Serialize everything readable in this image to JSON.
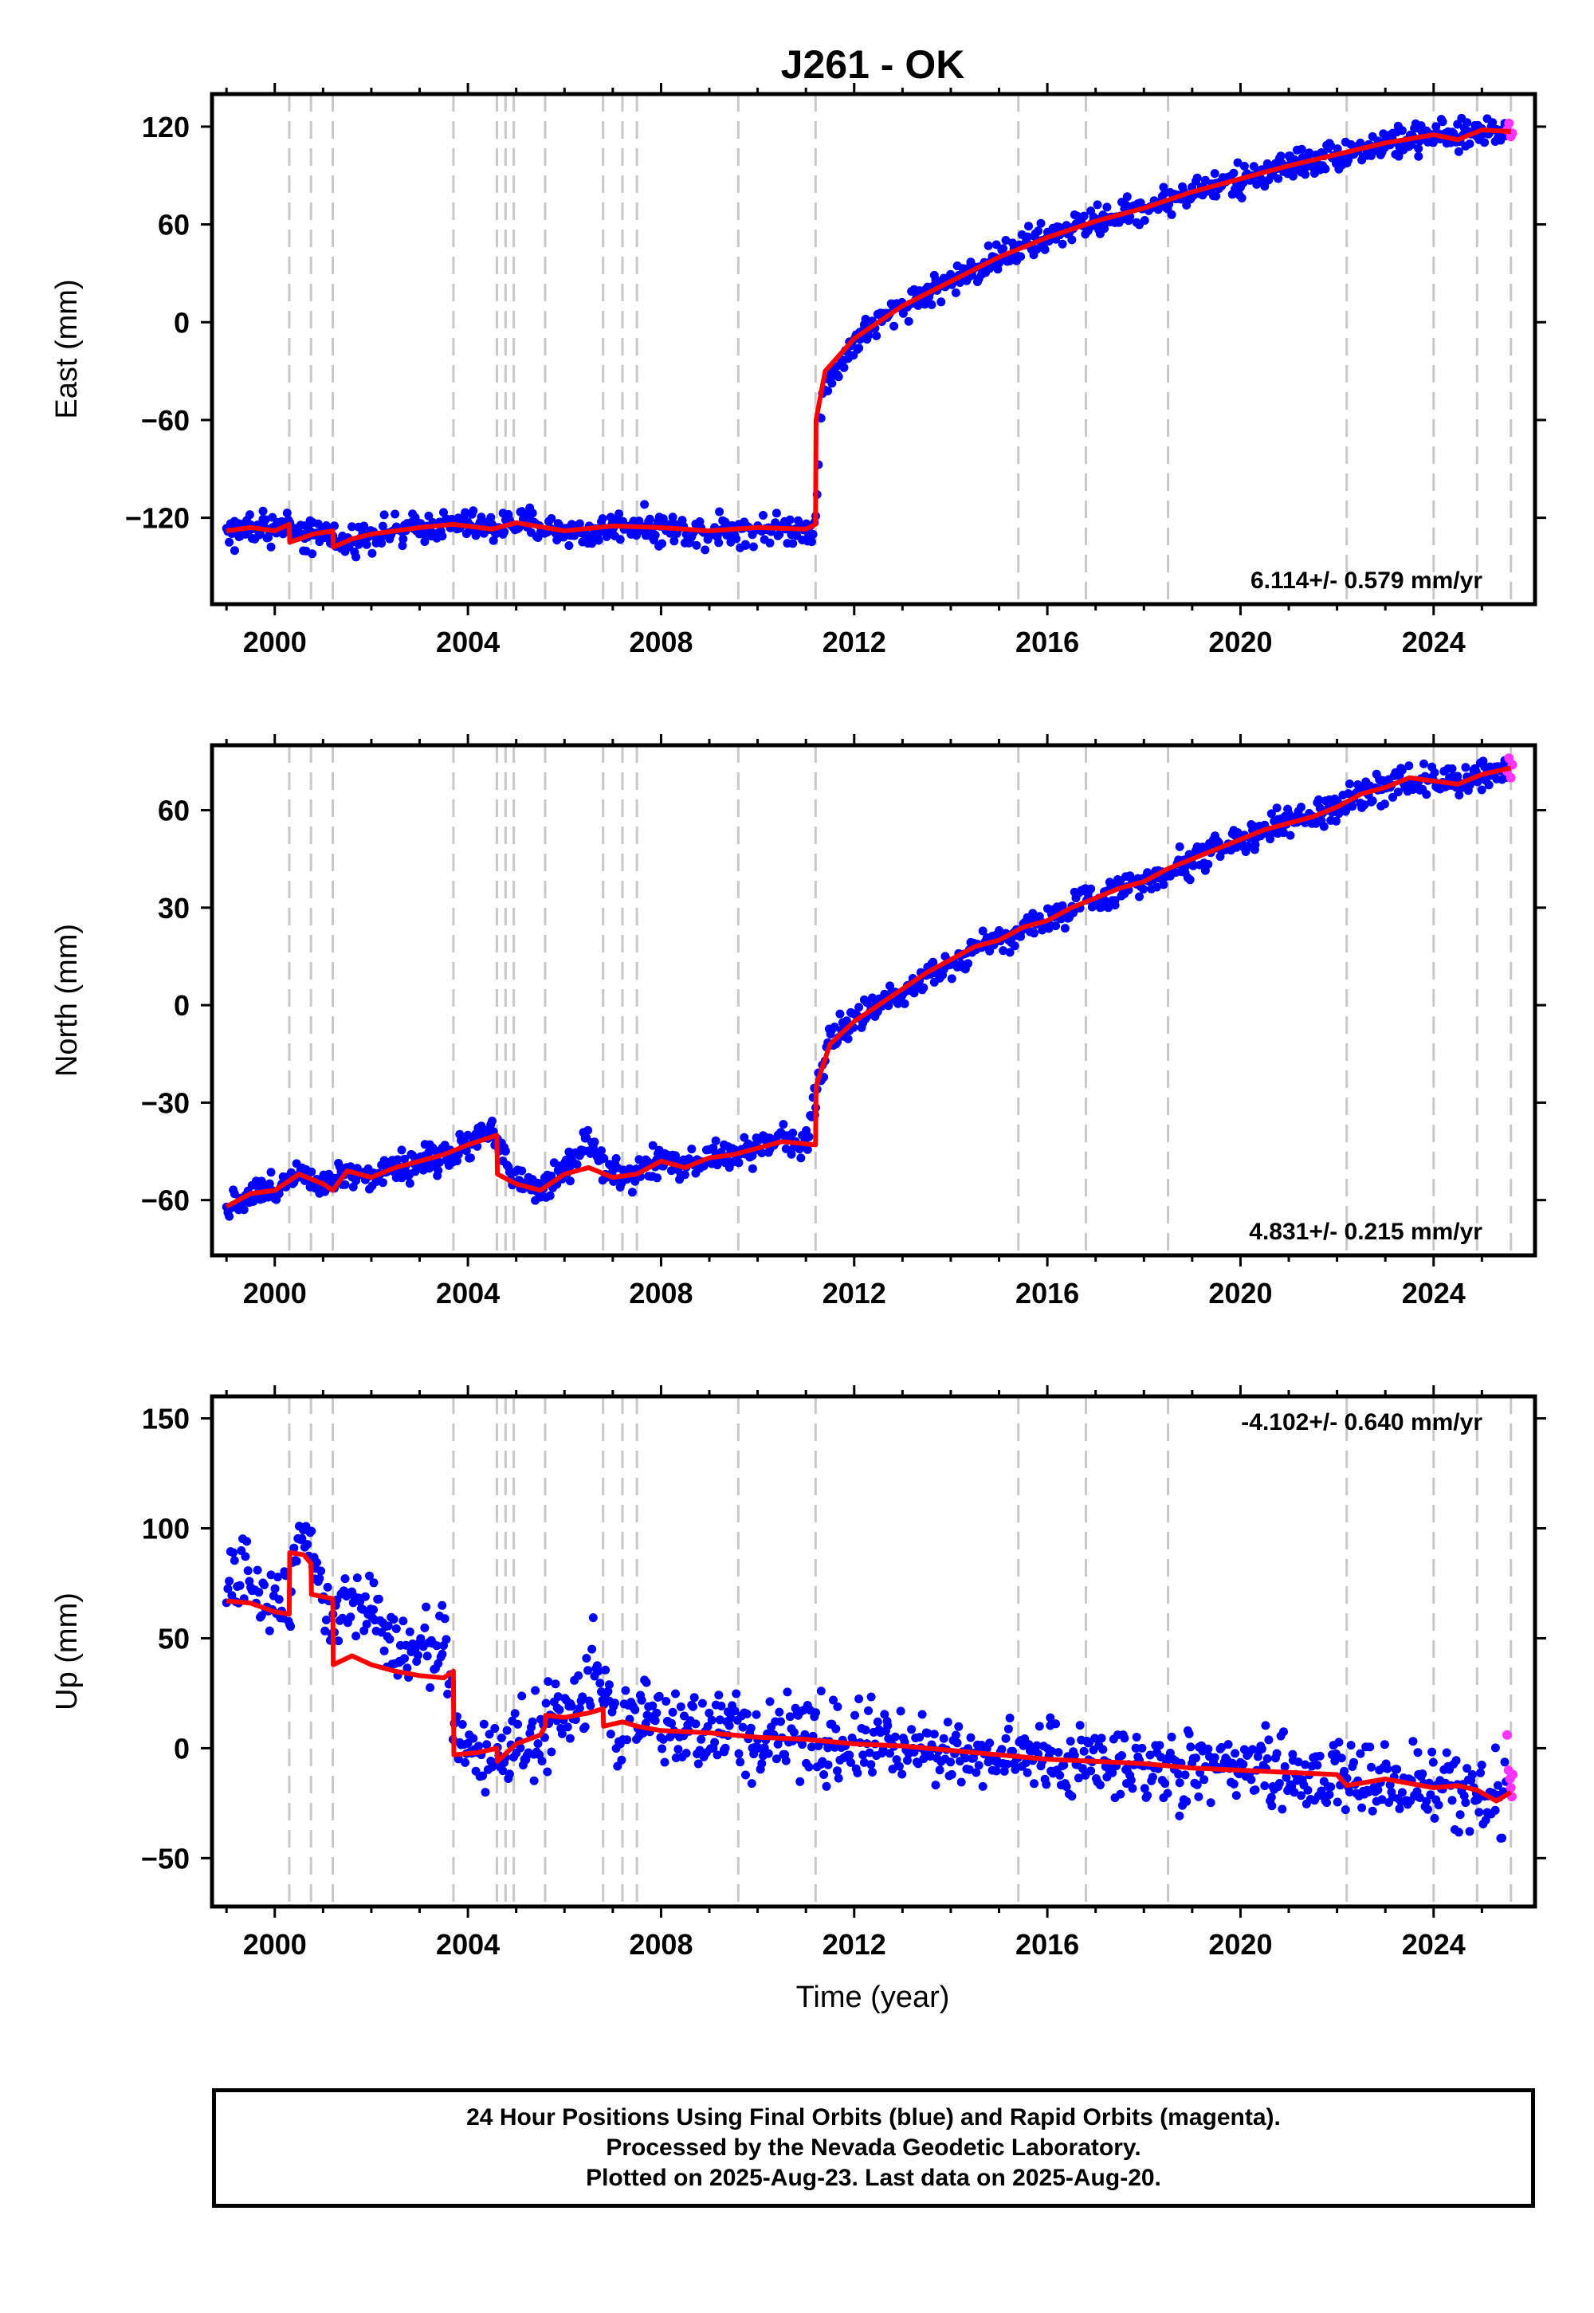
{
  "title": "J261 - OK",
  "xlabel": "Time (year)",
  "colors": {
    "final_orbits": "#0000ff",
    "rapid_orbits": "#ff33ff",
    "model": "#ff0000",
    "event_lines": "#c8c8c8",
    "frame": "#000000"
  },
  "footer": {
    "line1": "24 Hour Positions Using Final Orbits (blue) and Rapid Orbits (magenta).",
    "line2": "Processed by the Nevada Geodetic Laboratory.",
    "line3": "Plotted on 2025-Aug-23. Last data on 2025-Aug-20."
  },
  "chart_data": [
    {
      "type": "scatter",
      "ylabel": "East (mm)",
      "xlim": [
        1998.7,
        2026.1
      ],
      "ylim": [
        -173,
        140
      ],
      "xticks": [
        2000,
        2004,
        2008,
        2012,
        2016,
        2020,
        2024
      ],
      "yticks": [
        -120,
        -60,
        0,
        60,
        120
      ],
      "rate": "6.114+/- 0.579 mm/yr",
      "rate_position": "bottom-right",
      "event_lines": [
        2000.3,
        2000.75,
        2001.2,
        2003.7,
        2004.6,
        2004.78,
        2004.95,
        2005.6,
        2006.8,
        2007.2,
        2007.5,
        2009.6,
        2011.2,
        2015.4,
        2016.8,
        2018.5,
        2022.2,
        2024.0,
        2024.9,
        2025.6
      ],
      "model": {
        "x": [
          1999.0,
          1999.5,
          2000.0,
          2000.3,
          2000.31,
          2000.8,
          2001.2,
          2001.21,
          2001.6,
          2002.0,
          2003.0,
          2003.7,
          2004.5,
          2005.0,
          2006.0,
          2007.0,
          2008.0,
          2009.0,
          2010.0,
          2011.0,
          2011.2,
          2011.21,
          2011.4,
          2012.0,
          2013.0,
          2014.0,
          2015.0,
          2016.0,
          2017.0,
          2018.0,
          2019.0,
          2020.0,
          2021.0,
          2022.0,
          2023.0,
          2024.0,
          2024.5,
          2025.0,
          2025.6
        ],
        "y": [
          -128,
          -126,
          -128,
          -124,
          -135,
          -130,
          -128,
          -138,
          -133,
          -130,
          -126,
          -124,
          -127,
          -123,
          -128,
          -125,
          -126,
          -128,
          -126,
          -127,
          -124,
          -60,
          -30,
          -10,
          10,
          25,
          40,
          52,
          62,
          70,
          80,
          88,
          96,
          103,
          110,
          115,
          112,
          118,
          117
        ]
      },
      "final_orbits": {
        "x": [
          1999.0,
          1999.5,
          2000.0,
          2000.3,
          2000.5,
          2000.8,
          2001.2,
          2001.3,
          2001.6,
          2002.0,
          2002.5,
          2003.0,
          2003.5,
          2004.0,
          2004.5,
          2005.0,
          2005.5,
          2006.0,
          2006.5,
          2007.0,
          2007.5,
          2008.0,
          2008.5,
          2009.0,
          2009.5,
          2010.0,
          2010.5,
          2011.0,
          2011.2,
          2011.3,
          2011.5,
          2012.0,
          2012.5,
          2013.0,
          2013.5,
          2014.0,
          2014.5,
          2015.0,
          2015.5,
          2016.0,
          2016.5,
          2017.0,
          2017.5,
          2018.0,
          2018.5,
          2019.0,
          2019.5,
          2020.0,
          2020.5,
          2021.0,
          2021.5,
          2022.0,
          2022.5,
          2023.0,
          2023.5,
          2024.0,
          2024.5,
          2025.0,
          2025.5
        ],
        "y": [
          -128,
          -126,
          -128,
          -124,
          -135,
          -130,
          -128,
          -138,
          -133,
          -130,
          -128,
          -126,
          -125,
          -124,
          -127,
          -123,
          -126,
          -128,
          -130,
          -125,
          -124,
          -126,
          -128,
          -128,
          -127,
          -126,
          -127,
          -127,
          -124,
          -50,
          -35,
          -12,
          0,
          10,
          18,
          25,
          32,
          40,
          46,
          52,
          58,
          62,
          66,
          70,
          75,
          80,
          84,
          88,
          92,
          96,
          99,
          103,
          106,
          110,
          112,
          115,
          113,
          118,
          117
        ]
      },
      "rapid_orbits": {
        "x": [
          2025.52,
          2025.56,
          2025.6,
          2025.63
        ],
        "y": [
          118,
          122,
          114,
          116
        ]
      }
    },
    {
      "type": "scatter",
      "ylabel": "North (mm)",
      "xlim": [
        1998.7,
        2026.1
      ],
      "ylim": [
        -77,
        80
      ],
      "xticks": [
        2000,
        2004,
        2008,
        2012,
        2016,
        2020,
        2024
      ],
      "yticks": [
        -60,
        -30,
        0,
        30,
        60
      ],
      "rate": "4.831+/- 0.215 mm/yr",
      "rate_position": "bottom-right",
      "event_lines": [
        2000.3,
        2000.75,
        2001.2,
        2003.7,
        2004.6,
        2004.78,
        2004.95,
        2005.6,
        2006.8,
        2007.2,
        2007.5,
        2009.6,
        2011.2,
        2015.4,
        2016.8,
        2018.5,
        2022.2,
        2024.0,
        2024.9,
        2025.6
      ],
      "model": {
        "x": [
          1999.0,
          1999.5,
          2000.0,
          2000.5,
          2001.0,
          2001.2,
          2001.5,
          2002.0,
          2002.5,
          2003.0,
          2003.5,
          2004.0,
          2004.6,
          2004.61,
          2005.0,
          2005.5,
          2006.0,
          2006.5,
          2007.0,
          2007.5,
          2008.0,
          2008.5,
          2009.0,
          2009.5,
          2010.0,
          2010.5,
          2011.2,
          2011.21,
          2011.5,
          2012.0,
          2012.5,
          2013.0,
          2013.5,
          2014.0,
          2014.5,
          2015.0,
          2015.5,
          2016.0,
          2016.5,
          2017.0,
          2017.5,
          2018.0,
          2018.5,
          2019.0,
          2019.5,
          2020.0,
          2020.5,
          2021.0,
          2021.5,
          2022.0,
          2022.5,
          2023.0,
          2023.5,
          2024.0,
          2024.5,
          2025.0,
          2025.6
        ],
        "y": [
          -62,
          -58,
          -57,
          -52,
          -55,
          -57,
          -51,
          -53,
          -50,
          -48,
          -46,
          -43,
          -40,
          -52,
          -55,
          -57,
          -52,
          -50,
          -53,
          -52,
          -48,
          -50,
          -47,
          -46,
          -44,
          -42,
          -43,
          -25,
          -12,
          -5,
          0,
          5,
          10,
          14,
          18,
          20,
          24,
          26,
          30,
          33,
          36,
          38,
          42,
          45,
          48,
          51,
          54,
          56,
          58,
          61,
          65,
          67,
          70,
          69,
          68,
          71,
          73
        ]
      },
      "final_orbits": {
        "x": [
          1999.0,
          1999.5,
          2000.0,
          2000.5,
          2001.0,
          2001.5,
          2002.0,
          2002.5,
          2003.0,
          2003.5,
          2004.0,
          2004.5,
          2005.0,
          2005.5,
          2006.0,
          2006.5,
          2007.0,
          2007.5,
          2008.0,
          2008.5,
          2009.0,
          2009.5,
          2010.0,
          2010.5,
          2011.0,
          2011.3,
          2011.5,
          2012.0,
          2012.5,
          2013.0,
          2013.5,
          2014.0,
          2014.5,
          2015.0,
          2015.5,
          2016.0,
          2016.5,
          2017.0,
          2017.5,
          2018.0,
          2018.5,
          2019.0,
          2019.5,
          2020.0,
          2020.5,
          2021.0,
          2021.5,
          2022.0,
          2022.5,
          2023.0,
          2023.5,
          2024.0,
          2024.5,
          2025.0,
          2025.5
        ],
        "y": [
          -62,
          -58,
          -57,
          -50,
          -55,
          -51,
          -53,
          -50,
          -48,
          -46,
          -43,
          -38,
          -55,
          -57,
          -52,
          -42,
          -53,
          -52,
          -48,
          -50,
          -47,
          -46,
          -44,
          -40,
          -43,
          -20,
          -10,
          -5,
          0,
          4,
          10,
          12,
          18,
          20,
          24,
          26,
          30,
          33,
          36,
          38,
          42,
          45,
          48,
          51,
          54,
          56,
          58,
          61,
          64,
          67,
          70,
          69,
          68,
          71,
          72
        ]
      },
      "rapid_orbits": {
        "x": [
          2025.52,
          2025.56,
          2025.6,
          2025.63
        ],
        "y": [
          72,
          76,
          70,
          74
        ]
      }
    },
    {
      "type": "scatter",
      "ylabel": "Up (mm)",
      "xlim": [
        1998.7,
        2026.1
      ],
      "ylim": [
        -72,
        160
      ],
      "xticks": [
        2000,
        2004,
        2008,
        2012,
        2016,
        2020,
        2024
      ],
      "yticks": [
        -50,
        0,
        50,
        100,
        150
      ],
      "rate": "-4.102+/- 0.640 mm/yr",
      "rate_position": "top-right",
      "event_lines": [
        2000.3,
        2000.75,
        2001.2,
        2003.7,
        2004.6,
        2004.78,
        2004.95,
        2005.6,
        2006.8,
        2007.2,
        2007.5,
        2009.6,
        2011.2,
        2015.4,
        2016.8,
        2018.5,
        2022.2,
        2024.0,
        2024.9,
        2025.6
      ],
      "model": {
        "x": [
          1999.0,
          1999.5,
          2000.0,
          2000.3,
          2000.31,
          2000.6,
          2000.75,
          2000.76,
          2001.2,
          2001.21,
          2001.6,
          2002.0,
          2002.5,
          2003.0,
          2003.5,
          2003.7,
          2003.71,
          2004.2,
          2004.6,
          2004.61,
          2005.0,
          2005.5,
          2005.6,
          2005.61,
          2006.0,
          2006.5,
          2006.8,
          2006.81,
          2007.2,
          2007.5,
          2008.0,
          2009.0,
          2010.0,
          2011.0,
          2012.0,
          2013.0,
          2014.0,
          2015.0,
          2016.0,
          2017.0,
          2018.0,
          2019.0,
          2020.0,
          2021.0,
          2022.0,
          2022.2,
          2023.0,
          2024.0,
          2024.5,
          2024.9,
          2025.3,
          2025.6
        ],
        "y": [
          67,
          66,
          62,
          61,
          89,
          88,
          84,
          70,
          68,
          38,
          42,
          38,
          35,
          33,
          32,
          35,
          -3,
          -2,
          0,
          -6,
          2,
          6,
          10,
          15,
          14,
          16,
          18,
          10,
          12,
          10,
          8,
          7,
          5,
          4,
          2,
          1,
          -1,
          -3,
          -5,
          -6,
          -7,
          -9,
          -10,
          -11,
          -12,
          -17,
          -14,
          -18,
          -17,
          -19,
          -24,
          -20
        ]
      },
      "final_orbits": {
        "x": [
          1999.0,
          1999.3,
          1999.6,
          2000.0,
          2000.3,
          2000.5,
          2000.8,
          2001.0,
          2001.2,
          2001.5,
          2002.0,
          2002.5,
          2003.0,
          2003.5,
          2003.8,
          2004.2,
          2004.6,
          2005.0,
          2005.5,
          2006.0,
          2006.4,
          2006.6,
          2006.8,
          2007.0,
          2007.5,
          2008.0,
          2008.5,
          2009.0,
          2009.5,
          2010.0,
          2010.5,
          2011.0,
          2011.5,
          2012.0,
          2012.5,
          2013.0,
          2013.5,
          2014.0,
          2014.5,
          2015.0,
          2015.5,
          2016.0,
          2016.5,
          2017.0,
          2017.5,
          2018.0,
          2018.5,
          2019.0,
          2019.5,
          2020.0,
          2020.5,
          2021.0,
          2021.5,
          2022.0,
          2022.5,
          2023.0,
          2023.5,
          2024.0,
          2024.5,
          2025.0,
          2025.5
        ],
        "y": [
          70,
          80,
          72,
          65,
          75,
          100,
          92,
          70,
          55,
          65,
          58,
          50,
          45,
          48,
          0,
          -2,
          -5,
          4,
          8,
          14,
          18,
          45,
          25,
          10,
          12,
          8,
          10,
          7,
          9,
          5,
          6,
          3,
          4,
          2,
          3,
          0,
          1,
          -2,
          -1,
          -3,
          -4,
          -5,
          -6,
          -6,
          -7,
          -8,
          -8,
          -9,
          -10,
          -10,
          -11,
          -12,
          -12,
          -14,
          -15,
          -15,
          -17,
          -18,
          -19,
          -20,
          -22
        ]
      },
      "rapid_orbits": {
        "x": [
          2025.52,
          2025.55,
          2025.58,
          2025.6,
          2025.62,
          2025.64
        ],
        "y": [
          6,
          -10,
          -14,
          -18,
          -22,
          -12
        ]
      }
    }
  ]
}
